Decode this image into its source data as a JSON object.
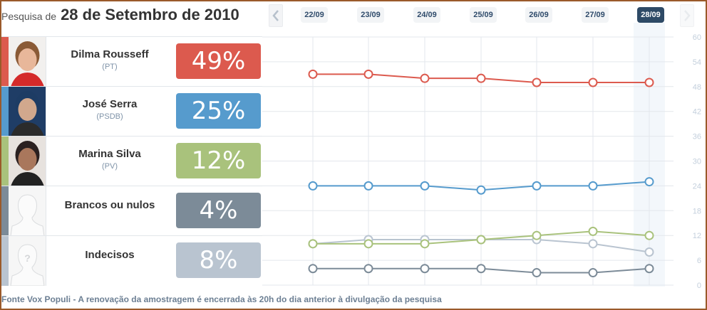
{
  "header": {
    "prefix": "Pesquisa de",
    "date": "28 de Setembro de 2010"
  },
  "nav": {
    "prev_icon": "chevron-left-icon",
    "next_icon": "chevron-right-icon",
    "dates": [
      "22/09",
      "23/09",
      "24/09",
      "25/09",
      "26/09",
      "27/09",
      "28/09"
    ],
    "active_date": "28/09"
  },
  "candidates": [
    {
      "name": "Dilma Rousseff",
      "party": "(PT)",
      "pct": "49%",
      "color": "#dc5a4e",
      "photo": "portrait"
    },
    {
      "name": "José Serra",
      "party": "(PSDB)",
      "pct": "25%",
      "color": "#569bcd",
      "photo": "portrait"
    },
    {
      "name": "Marina Silva",
      "party": "(PV)",
      "pct": "12%",
      "color": "#a9c27c",
      "photo": "portrait"
    },
    {
      "name": "Brancos ou nulos",
      "party": "",
      "pct": "4%",
      "color": "#7c8b98",
      "photo": "silhouette-icon"
    },
    {
      "name": "Indecisos",
      "party": "",
      "pct": "8%",
      "color": "#b9c4d0",
      "photo": "question-silhouette-icon"
    }
  ],
  "footer": {
    "text": "Fonte Vox Populi - A renovação da amostragem é encerrada às 20h do dia anterior à divulgação da pesquisa"
  },
  "chart_data": {
    "type": "line",
    "title": "",
    "xlabel": "",
    "ylabel": "",
    "categories": [
      "22/09",
      "23/09",
      "24/09",
      "25/09",
      "26/09",
      "27/09",
      "28/09"
    ],
    "ylim": [
      0,
      60
    ],
    "yticks": [
      0,
      6,
      12,
      18,
      24,
      30,
      36,
      42,
      48,
      54,
      60
    ],
    "grid": true,
    "y_axis_position": "right",
    "highlighted_category": "28/09",
    "series": [
      {
        "name": "Dilma Rousseff",
        "color": "#dc5a4e",
        "values": [
          51,
          51,
          50,
          50,
          49,
          49,
          49
        ]
      },
      {
        "name": "José Serra",
        "color": "#569bcd",
        "values": [
          24,
          24,
          24,
          23,
          24,
          24,
          25
        ]
      },
      {
        "name": "Indecisos",
        "color": "#b9c4d0",
        "values": [
          10,
          11,
          11,
          11,
          11,
          10,
          8
        ]
      },
      {
        "name": "Marina Silva",
        "color": "#a9c27c",
        "values": [
          10,
          10,
          10,
          11,
          12,
          13,
          12
        ]
      },
      {
        "name": "Brancos ou nulos",
        "color": "#7c8b98",
        "values": [
          4,
          4,
          4,
          4,
          3,
          3,
          4
        ]
      }
    ]
  }
}
